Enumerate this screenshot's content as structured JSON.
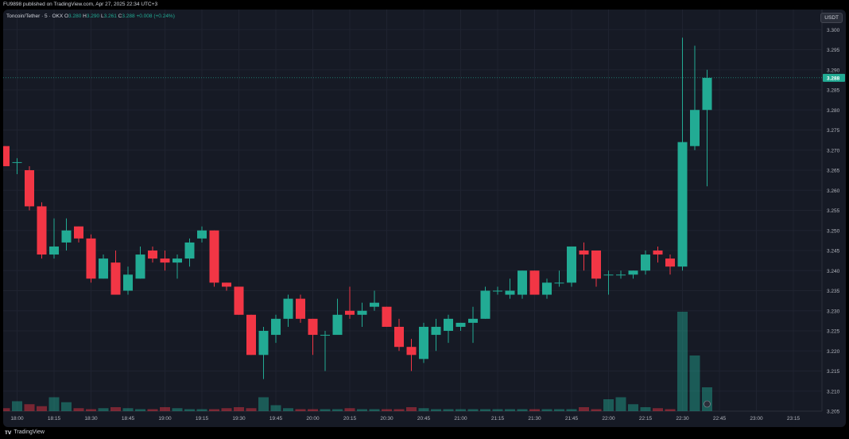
{
  "header": {
    "published": "FU9898 published on TradingView.com, Apr 27, 2025 22:34 UTC+3"
  },
  "legend": {
    "symbol": "Toncoin/Tether · 5 · OKX",
    "o_label": "O",
    "o_value": "3.280",
    "h_label": "H",
    "h_value": "3.290",
    "l_label": "L",
    "l_value": "3.261",
    "c_label": "C",
    "c_value": "3.288",
    "change": "+0.008 (+0.24%)"
  },
  "currency_button": "USDT",
  "footer": {
    "brand": "TradingView"
  },
  "colors": {
    "bg": "#161a25",
    "up": "#22ab94",
    "down": "#f23645",
    "grid": "#1f2330",
    "text": "#b2b5be"
  },
  "chart_data": {
    "type": "candlestick",
    "ylim": [
      3.205,
      3.305
    ],
    "y_ticks": [
      "3.300",
      "3.295",
      "3.290",
      "3.285",
      "3.280",
      "3.275",
      "3.270",
      "3.265",
      "3.260",
      "3.255",
      "3.250",
      "3.245",
      "3.240",
      "3.235",
      "3.230",
      "3.225",
      "3.220",
      "3.215",
      "3.210",
      "3.205"
    ],
    "y_tick_values": [
      3.3,
      3.295,
      3.29,
      3.285,
      3.28,
      3.275,
      3.27,
      3.265,
      3.26,
      3.255,
      3.25,
      3.245,
      3.24,
      3.235,
      3.23,
      3.225,
      3.22,
      3.215,
      3.21,
      3.205
    ],
    "x_ticks": [
      "18:00",
      "18:15",
      "18:30",
      "18:45",
      "19:00",
      "19:15",
      "19:30",
      "19:45",
      "20:00",
      "20:15",
      "20:30",
      "20:45",
      "21:00",
      "21:15",
      "21:30",
      "21:45",
      "22:00",
      "22:15",
      "22:30",
      "22:45",
      "23:00",
      "23:15"
    ],
    "x_tick_index": [
      1,
      4,
      7,
      10,
      13,
      16,
      19,
      22,
      25,
      28,
      31,
      34,
      37,
      40,
      43,
      46,
      49,
      52,
      55,
      58,
      61,
      64
    ],
    "last_price": "3.288",
    "candles": [
      {
        "o": 3.271,
        "h": 3.271,
        "l": 3.266,
        "c": 3.266
      },
      {
        "o": 3.267,
        "h": 3.268,
        "l": 3.264,
        "c": 3.267
      },
      {
        "o": 3.265,
        "h": 3.266,
        "l": 3.255,
        "c": 3.256
      },
      {
        "o": 3.256,
        "h": 3.257,
        "l": 3.243,
        "c": 3.244
      },
      {
        "o": 3.244,
        "h": 3.253,
        "l": 3.243,
        "c": 3.246
      },
      {
        "o": 3.247,
        "h": 3.253,
        "l": 3.245,
        "c": 3.25
      },
      {
        "o": 3.251,
        "h": 3.251,
        "l": 3.247,
        "c": 3.248
      },
      {
        "o": 3.248,
        "h": 3.249,
        "l": 3.237,
        "c": 3.238
      },
      {
        "o": 3.238,
        "h": 3.244,
        "l": 3.238,
        "c": 3.243
      },
      {
        "o": 3.242,
        "h": 3.245,
        "l": 3.234,
        "c": 3.234
      },
      {
        "o": 3.235,
        "h": 3.241,
        "l": 3.234,
        "c": 3.239
      },
      {
        "o": 3.238,
        "h": 3.246,
        "l": 3.238,
        "c": 3.244
      },
      {
        "o": 3.245,
        "h": 3.246,
        "l": 3.242,
        "c": 3.243
      },
      {
        "o": 3.243,
        "h": 3.245,
        "l": 3.24,
        "c": 3.242
      },
      {
        "o": 3.242,
        "h": 3.244,
        "l": 3.238,
        "c": 3.243
      },
      {
        "o": 3.243,
        "h": 3.248,
        "l": 3.241,
        "c": 3.247
      },
      {
        "o": 3.248,
        "h": 3.251,
        "l": 3.247,
        "c": 3.25
      },
      {
        "o": 3.25,
        "h": 3.25,
        "l": 3.236,
        "c": 3.237
      },
      {
        "o": 3.237,
        "h": 3.237,
        "l": 3.235,
        "c": 3.236
      },
      {
        "o": 3.236,
        "h": 3.236,
        "l": 3.229,
        "c": 3.229
      },
      {
        "o": 3.229,
        "h": 3.229,
        "l": 3.219,
        "c": 3.219
      },
      {
        "o": 3.219,
        "h": 3.226,
        "l": 3.213,
        "c": 3.225
      },
      {
        "o": 3.224,
        "h": 3.229,
        "l": 3.222,
        "c": 3.228
      },
      {
        "o": 3.228,
        "h": 3.234,
        "l": 3.226,
        "c": 3.233
      },
      {
        "o": 3.233,
        "h": 3.234,
        "l": 3.227,
        "c": 3.228
      },
      {
        "o": 3.228,
        "h": 3.228,
        "l": 3.219,
        "c": 3.224
      },
      {
        "o": 3.224,
        "h": 3.225,
        "l": 3.215,
        "c": 3.224
      },
      {
        "o": 3.224,
        "h": 3.233,
        "l": 3.224,
        "c": 3.229
      },
      {
        "o": 3.23,
        "h": 3.236,
        "l": 3.228,
        "c": 3.229
      },
      {
        "o": 3.229,
        "h": 3.232,
        "l": 3.226,
        "c": 3.23
      },
      {
        "o": 3.231,
        "h": 3.235,
        "l": 3.23,
        "c": 3.232
      },
      {
        "o": 3.231,
        "h": 3.231,
        "l": 3.226,
        "c": 3.226
      },
      {
        "o": 3.226,
        "h": 3.228,
        "l": 3.22,
        "c": 3.221
      },
      {
        "o": 3.221,
        "h": 3.223,
        "l": 3.215,
        "c": 3.219
      },
      {
        "o": 3.218,
        "h": 3.227,
        "l": 3.217,
        "c": 3.226
      },
      {
        "o": 3.224,
        "h": 3.228,
        "l": 3.22,
        "c": 3.226
      },
      {
        "o": 3.225,
        "h": 3.229,
        "l": 3.222,
        "c": 3.228
      },
      {
        "o": 3.226,
        "h": 3.227,
        "l": 3.225,
        "c": 3.227
      },
      {
        "o": 3.227,
        "h": 3.231,
        "l": 3.222,
        "c": 3.228
      },
      {
        "o": 3.228,
        "h": 3.236,
        "l": 3.228,
        "c": 3.235
      },
      {
        "o": 3.235,
        "h": 3.236,
        "l": 3.234,
        "c": 3.235
      },
      {
        "o": 3.234,
        "h": 3.238,
        "l": 3.233,
        "c": 3.235
      },
      {
        "o": 3.234,
        "h": 3.24,
        "l": 3.233,
        "c": 3.24
      },
      {
        "o": 3.24,
        "h": 3.24,
        "l": 3.234,
        "c": 3.234
      },
      {
        "o": 3.234,
        "h": 3.238,
        "l": 3.233,
        "c": 3.237
      },
      {
        "o": 3.237,
        "h": 3.24,
        "l": 3.236,
        "c": 3.237
      },
      {
        "o": 3.237,
        "h": 3.246,
        "l": 3.236,
        "c": 3.246
      },
      {
        "o": 3.245,
        "h": 3.247,
        "l": 3.24,
        "c": 3.244
      },
      {
        "o": 3.245,
        "h": 3.245,
        "l": 3.236,
        "c": 3.238
      },
      {
        "o": 3.239,
        "h": 3.24,
        "l": 3.234,
        "c": 3.239
      },
      {
        "o": 3.239,
        "h": 3.24,
        "l": 3.238,
        "c": 3.239
      },
      {
        "o": 3.239,
        "h": 3.24,
        "l": 3.238,
        "c": 3.24
      },
      {
        "o": 3.24,
        "h": 3.245,
        "l": 3.239,
        "c": 3.244
      },
      {
        "o": 3.245,
        "h": 3.246,
        "l": 3.242,
        "c": 3.244
      },
      {
        "o": 3.243,
        "h": 3.244,
        "l": 3.239,
        "c": 3.241
      },
      {
        "o": 3.241,
        "h": 3.298,
        "l": 3.24,
        "c": 3.272
      },
      {
        "o": 3.271,
        "h": 3.296,
        "l": 3.27,
        "c": 3.28
      },
      {
        "o": 3.28,
        "h": 3.29,
        "l": 3.261,
        "c": 3.288
      }
    ],
    "volumes": [
      0.03,
      0.1,
      0.07,
      0.05,
      0.14,
      0.09,
      0.03,
      0.02,
      0.03,
      0.04,
      0.03,
      0.02,
      0.02,
      0.04,
      0.03,
      0.02,
      0.02,
      0.02,
      0.03,
      0.04,
      0.03,
      0.14,
      0.06,
      0.03,
      0.02,
      0.02,
      0.02,
      0.02,
      0.03,
      0.02,
      0.02,
      0.02,
      0.02,
      0.04,
      0.03,
      0.02,
      0.02,
      0.02,
      0.02,
      0.02,
      0.02,
      0.02,
      0.02,
      0.02,
      0.02,
      0.02,
      0.02,
      0.04,
      0.02,
      0.12,
      0.14,
      0.07,
      0.04,
      0.03,
      0.02,
      1.0,
      0.56,
      0.24
    ]
  }
}
